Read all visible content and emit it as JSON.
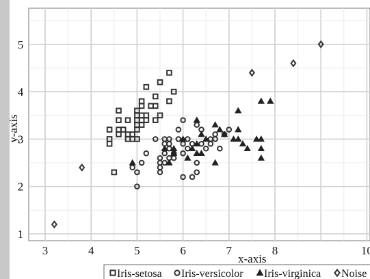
{
  "chart_data": {
    "type": "scatter",
    "xlabel": "x-axis",
    "ylabel": "y-axis",
    "xlim": [
      2.5,
      10
    ],
    "ylim": [
      0.8,
      5.6
    ],
    "x_ticks": [
      "3",
      "4",
      "5",
      "6",
      "7",
      "8",
      "10"
    ],
    "y_ticks": [
      "1",
      "2",
      "3",
      "4",
      "5"
    ],
    "grid": true,
    "legend_position": "bottom",
    "series": [
      {
        "name": "Iris-setosa",
        "marker": "square",
        "color": "#333333",
        "points": [
          [
            4.4,
            2.9
          ],
          [
            4.4,
            3.0
          ],
          [
            4.4,
            3.2
          ],
          [
            4.5,
            2.3
          ],
          [
            4.6,
            3.1
          ],
          [
            4.6,
            3.2
          ],
          [
            4.6,
            3.4
          ],
          [
            4.6,
            3.6
          ],
          [
            4.7,
            3.2
          ],
          [
            4.8,
            3.0
          ],
          [
            4.8,
            3.1
          ],
          [
            4.8,
            3.4
          ],
          [
            4.9,
            3.0
          ],
          [
            4.9,
            3.1
          ],
          [
            5.0,
            3.0
          ],
          [
            5.0,
            3.2
          ],
          [
            5.0,
            3.3
          ],
          [
            5.0,
            3.4
          ],
          [
            5.0,
            3.5
          ],
          [
            5.0,
            3.6
          ],
          [
            5.1,
            3.3
          ],
          [
            5.1,
            3.4
          ],
          [
            5.1,
            3.5
          ],
          [
            5.1,
            3.7
          ],
          [
            5.1,
            3.8
          ],
          [
            5.2,
            3.4
          ],
          [
            5.2,
            3.5
          ],
          [
            5.2,
            4.1
          ],
          [
            5.3,
            3.7
          ],
          [
            5.4,
            3.4
          ],
          [
            5.4,
            3.7
          ],
          [
            5.4,
            3.9
          ],
          [
            5.5,
            3.5
          ],
          [
            5.5,
            4.2
          ],
          [
            5.7,
            3.8
          ],
          [
            5.7,
            4.4
          ],
          [
            5.8,
            4.0
          ]
        ]
      },
      {
        "name": "Iris-versicolor",
        "marker": "circle",
        "color": "#333333",
        "points": [
          [
            4.9,
            2.4
          ],
          [
            5.0,
            2.0
          ],
          [
            5.0,
            2.3
          ],
          [
            5.1,
            2.5
          ],
          [
            5.2,
            2.7
          ],
          [
            5.4,
            3.0
          ],
          [
            5.5,
            2.3
          ],
          [
            5.5,
            2.4
          ],
          [
            5.5,
            2.5
          ],
          [
            5.5,
            2.6
          ],
          [
            5.6,
            2.5
          ],
          [
            5.6,
            2.7
          ],
          [
            5.6,
            2.9
          ],
          [
            5.6,
            3.0
          ],
          [
            5.7,
            2.6
          ],
          [
            5.7,
            2.8
          ],
          [
            5.7,
            2.9
          ],
          [
            5.7,
            3.0
          ],
          [
            5.8,
            2.6
          ],
          [
            5.8,
            2.7
          ],
          [
            5.9,
            3.0
          ],
          [
            5.9,
            3.2
          ],
          [
            6.0,
            2.2
          ],
          [
            6.0,
            2.7
          ],
          [
            6.0,
            2.9
          ],
          [
            6.0,
            3.4
          ],
          [
            6.1,
            2.8
          ],
          [
            6.1,
            3.0
          ],
          [
            6.2,
            2.2
          ],
          [
            6.2,
            2.9
          ],
          [
            6.3,
            2.3
          ],
          [
            6.3,
            2.5
          ],
          [
            6.3,
            3.3
          ],
          [
            6.4,
            2.9
          ],
          [
            6.4,
            3.2
          ],
          [
            6.5,
            2.8
          ],
          [
            6.6,
            2.9
          ],
          [
            6.6,
            3.0
          ],
          [
            6.7,
            3.0
          ],
          [
            6.7,
            3.1
          ],
          [
            6.8,
            2.8
          ],
          [
            6.9,
            3.1
          ],
          [
            7.0,
            3.2
          ]
        ]
      },
      {
        "name": "Iris-virginica",
        "marker": "triangle",
        "color": "#333333",
        "points": [
          [
            4.9,
            2.5
          ],
          [
            5.6,
            2.8
          ],
          [
            5.7,
            2.5
          ],
          [
            5.8,
            2.7
          ],
          [
            5.8,
            2.8
          ],
          [
            6.0,
            3.0
          ],
          [
            6.1,
            2.6
          ],
          [
            6.2,
            2.8
          ],
          [
            6.3,
            2.7
          ],
          [
            6.3,
            2.9
          ],
          [
            6.3,
            3.4
          ],
          [
            6.4,
            2.7
          ],
          [
            6.4,
            3.1
          ],
          [
            6.5,
            3.0
          ],
          [
            6.7,
            2.5
          ],
          [
            6.7,
            3.3
          ],
          [
            6.8,
            3.2
          ],
          [
            6.9,
            3.1
          ],
          [
            7.1,
            3.0
          ],
          [
            7.2,
            3.0
          ],
          [
            7.2,
            3.2
          ],
          [
            7.2,
            3.6
          ],
          [
            7.3,
            2.9
          ],
          [
            7.4,
            2.8
          ],
          [
            7.6,
            3.0
          ],
          [
            7.7,
            2.6
          ],
          [
            7.7,
            2.8
          ],
          [
            7.7,
            3.0
          ],
          [
            7.7,
            3.8
          ],
          [
            7.9,
            3.8
          ]
        ]
      },
      {
        "name": "Noise",
        "marker": "diamond",
        "color": "#333333",
        "points": [
          [
            3.2,
            1.2
          ],
          [
            3.8,
            2.4
          ],
          [
            7.5,
            4.4
          ],
          [
            8.4,
            4.6
          ],
          [
            9.0,
            5.0
          ]
        ]
      }
    ]
  }
}
